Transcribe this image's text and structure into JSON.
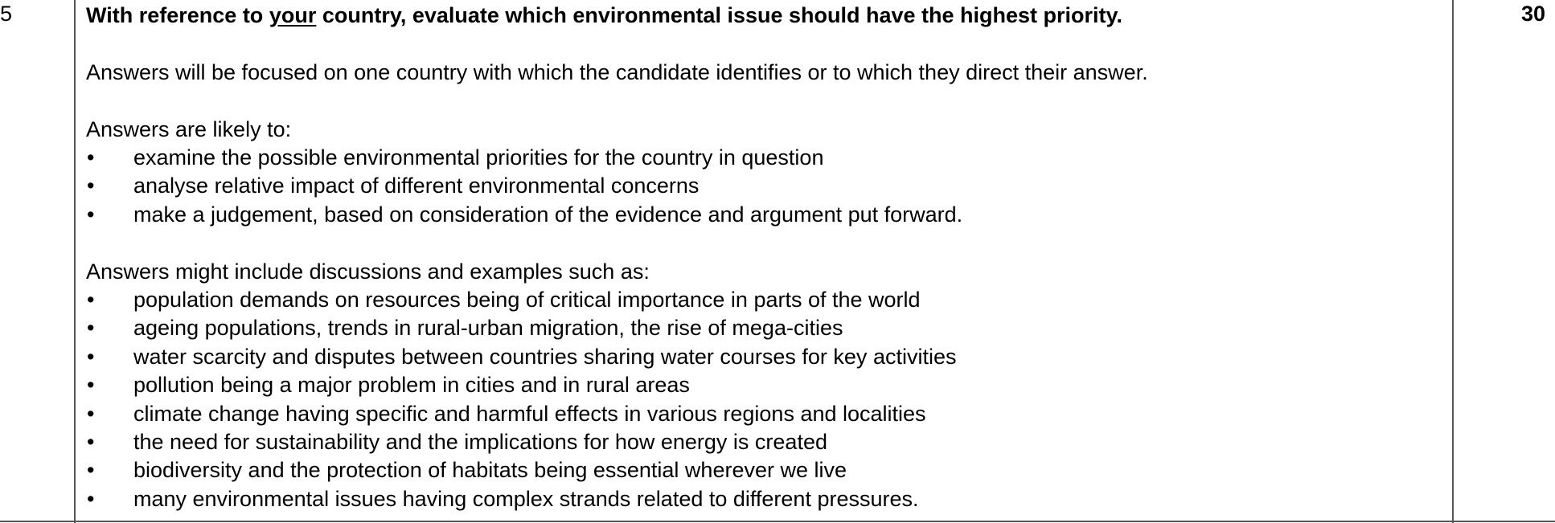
{
  "row": {
    "question_number": "5",
    "marks": "30",
    "question": {
      "prefix": "With reference to ",
      "underlined": "your",
      "suffix": " country, evaluate which environmental issue should have the highest priority."
    },
    "intro": "Answers will be focused on one country with which the candidate identifies or to which they direct their answer.",
    "likely_heading": "Answers are likely to:",
    "likely_items": [
      "examine the possible environmental priorities for the country in question",
      "analyse relative impact of different environmental concerns",
      "make a judgement, based on consideration of the evidence and argument put forward."
    ],
    "might_heading": "Answers might include discussions and examples such as:",
    "might_items": [
      "population demands on resources being of critical importance in parts of the world",
      "ageing populations, trends in rural-urban migration, the rise of mega-cities",
      "water scarcity and disputes between countries sharing water courses for key activities",
      "pollution being a major problem in cities and in rural areas",
      "climate change having specific and harmful effects in various regions and localities",
      "the need for sustainability and the implications for how energy is created",
      "biodiversity and the protection of habitats being essential wherever we live",
      "many environmental issues having complex strands related to different pressures."
    ],
    "bullet_glyph": "•"
  }
}
